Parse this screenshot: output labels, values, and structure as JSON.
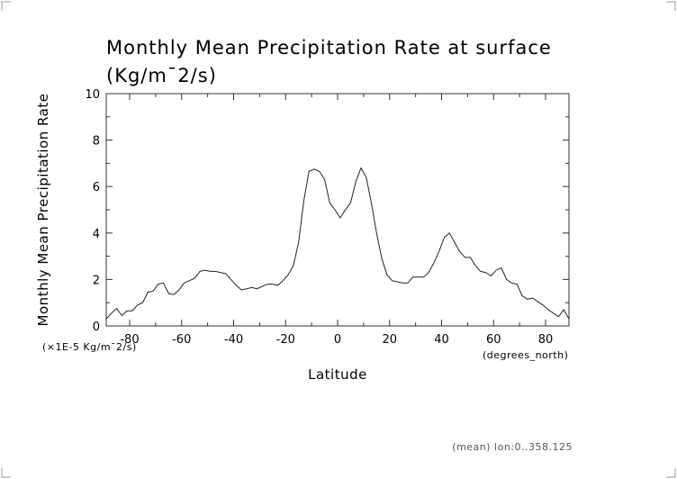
{
  "chart_data": {
    "type": "line",
    "title": "Monthly Mean Precipitation Rate at surface",
    "subtitle": "(Kg/m¯2/s)",
    "ylabel": "Monthly Mean Precipitation Rate",
    "xlabel": "Latitude",
    "yunits": "(×1E-5 Kg/m¯2/s)",
    "xunits": "(degrees_north)",
    "footnote": "(mean) lon:0..358.125",
    "xlim": [
      -89,
      89
    ],
    "ylim": [
      0,
      10
    ],
    "xticks": [
      -80,
      -60,
      -40,
      -20,
      0,
      20,
      40,
      60,
      80
    ],
    "yticks": [
      0,
      2,
      4,
      6,
      8,
      10
    ],
    "grid": false,
    "series": [
      {
        "color": "#222222",
        "x": [
          -89,
          -87,
          -85,
          -83,
          -81,
          -79,
          -77,
          -75,
          -73,
          -71,
          -69,
          -67,
          -65,
          -63,
          -61,
          -59,
          -57,
          -55,
          -53,
          -51,
          -49,
          -47,
          -45,
          -43,
          -41,
          -39,
          -37,
          -35,
          -33,
          -31,
          -29,
          -27,
          -25,
          -23,
          -21,
          -19,
          -17,
          -15,
          -13,
          -11,
          -9,
          -7,
          -5,
          -3,
          -1,
          1,
          3,
          5,
          7,
          9,
          11,
          13,
          15,
          17,
          19,
          21,
          23,
          25,
          27,
          29,
          31,
          33,
          35,
          37,
          39,
          41,
          43,
          45,
          47,
          49,
          51,
          53,
          55,
          57,
          59,
          61,
          63,
          65,
          67,
          69,
          71,
          73,
          75,
          77,
          79,
          81,
          83,
          85,
          87,
          89
        ],
        "y": [
          0.3,
          0.55,
          0.75,
          0.45,
          0.65,
          0.65,
          0.9,
          1.0,
          1.45,
          1.5,
          1.8,
          1.85,
          1.4,
          1.35,
          1.55,
          1.85,
          1.95,
          2.05,
          2.35,
          2.4,
          2.35,
          2.35,
          2.3,
          2.25,
          2.0,
          1.75,
          1.55,
          1.6,
          1.65,
          1.6,
          1.7,
          1.8,
          1.8,
          1.75,
          1.95,
          2.2,
          2.6,
          3.6,
          5.4,
          6.65,
          6.75,
          6.65,
          6.3,
          5.3,
          5.0,
          4.65,
          5.0,
          5.3,
          6.2,
          6.8,
          6.4,
          5.3,
          4.0,
          2.9,
          2.2,
          1.95,
          1.9,
          1.85,
          1.85,
          2.1,
          2.1,
          2.1,
          2.3,
          2.7,
          3.2,
          3.8,
          4.0,
          3.6,
          3.2,
          2.95,
          2.95,
          2.6,
          2.35,
          2.3,
          2.15,
          2.4,
          2.5,
          2.0,
          1.85,
          1.8,
          1.3,
          1.15,
          1.2,
          1.05,
          0.9,
          0.7,
          0.55,
          0.4,
          0.7,
          0.3
        ]
      }
    ]
  }
}
